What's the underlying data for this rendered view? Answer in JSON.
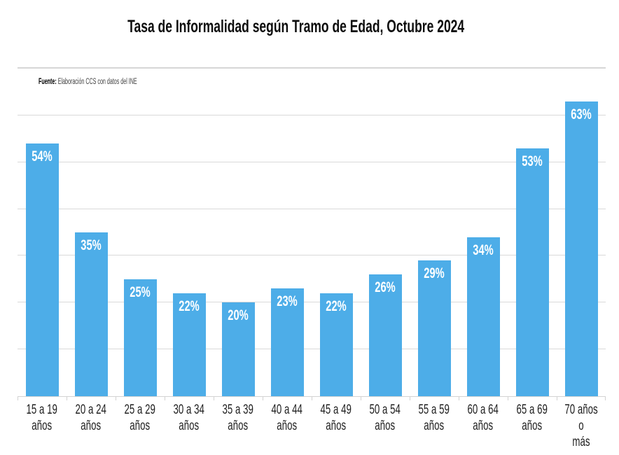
{
  "page": {
    "background_color": "#ffffff"
  },
  "chart_data": {
    "type": "bar",
    "title": "Tasa de Informalidad según Tramo de Edad, Octubre 2024",
    "source": {
      "label": "Fuente:",
      "text": "Elaboración CCS con datos del INE"
    },
    "categories": [
      "15 a 19\naños",
      "20 a 24\naños",
      "25 a 29\naños",
      "30 a 34\naños",
      "35 a 39\naños",
      "40 a 44\naños",
      "45 a 49\naños",
      "50 a 54\naños",
      "55 a 59\naños",
      "60 a 64\naños",
      "65 a 69\naños",
      "70 años o\nmás"
    ],
    "values": [
      54,
      35,
      25,
      22,
      20,
      23,
      22,
      26,
      29,
      34,
      53,
      63
    ],
    "value_labels": [
      "54%",
      "35%",
      "25%",
      "22%",
      "20%",
      "23%",
      "22%",
      "26%",
      "29%",
      "34%",
      "53%",
      "63%"
    ],
    "xlabel": "",
    "ylabel": "",
    "ylim": [
      0,
      70
    ],
    "gridline_step": 10,
    "grid": true,
    "legend": false,
    "colors": {
      "bar": "#4DADE8",
      "gridline": "#D9D9D9",
      "axis": "#D2D2D2",
      "value_label": "#FFFFFF",
      "axis_label": "#1F1F1F",
      "title": "#0D0D0D"
    }
  }
}
